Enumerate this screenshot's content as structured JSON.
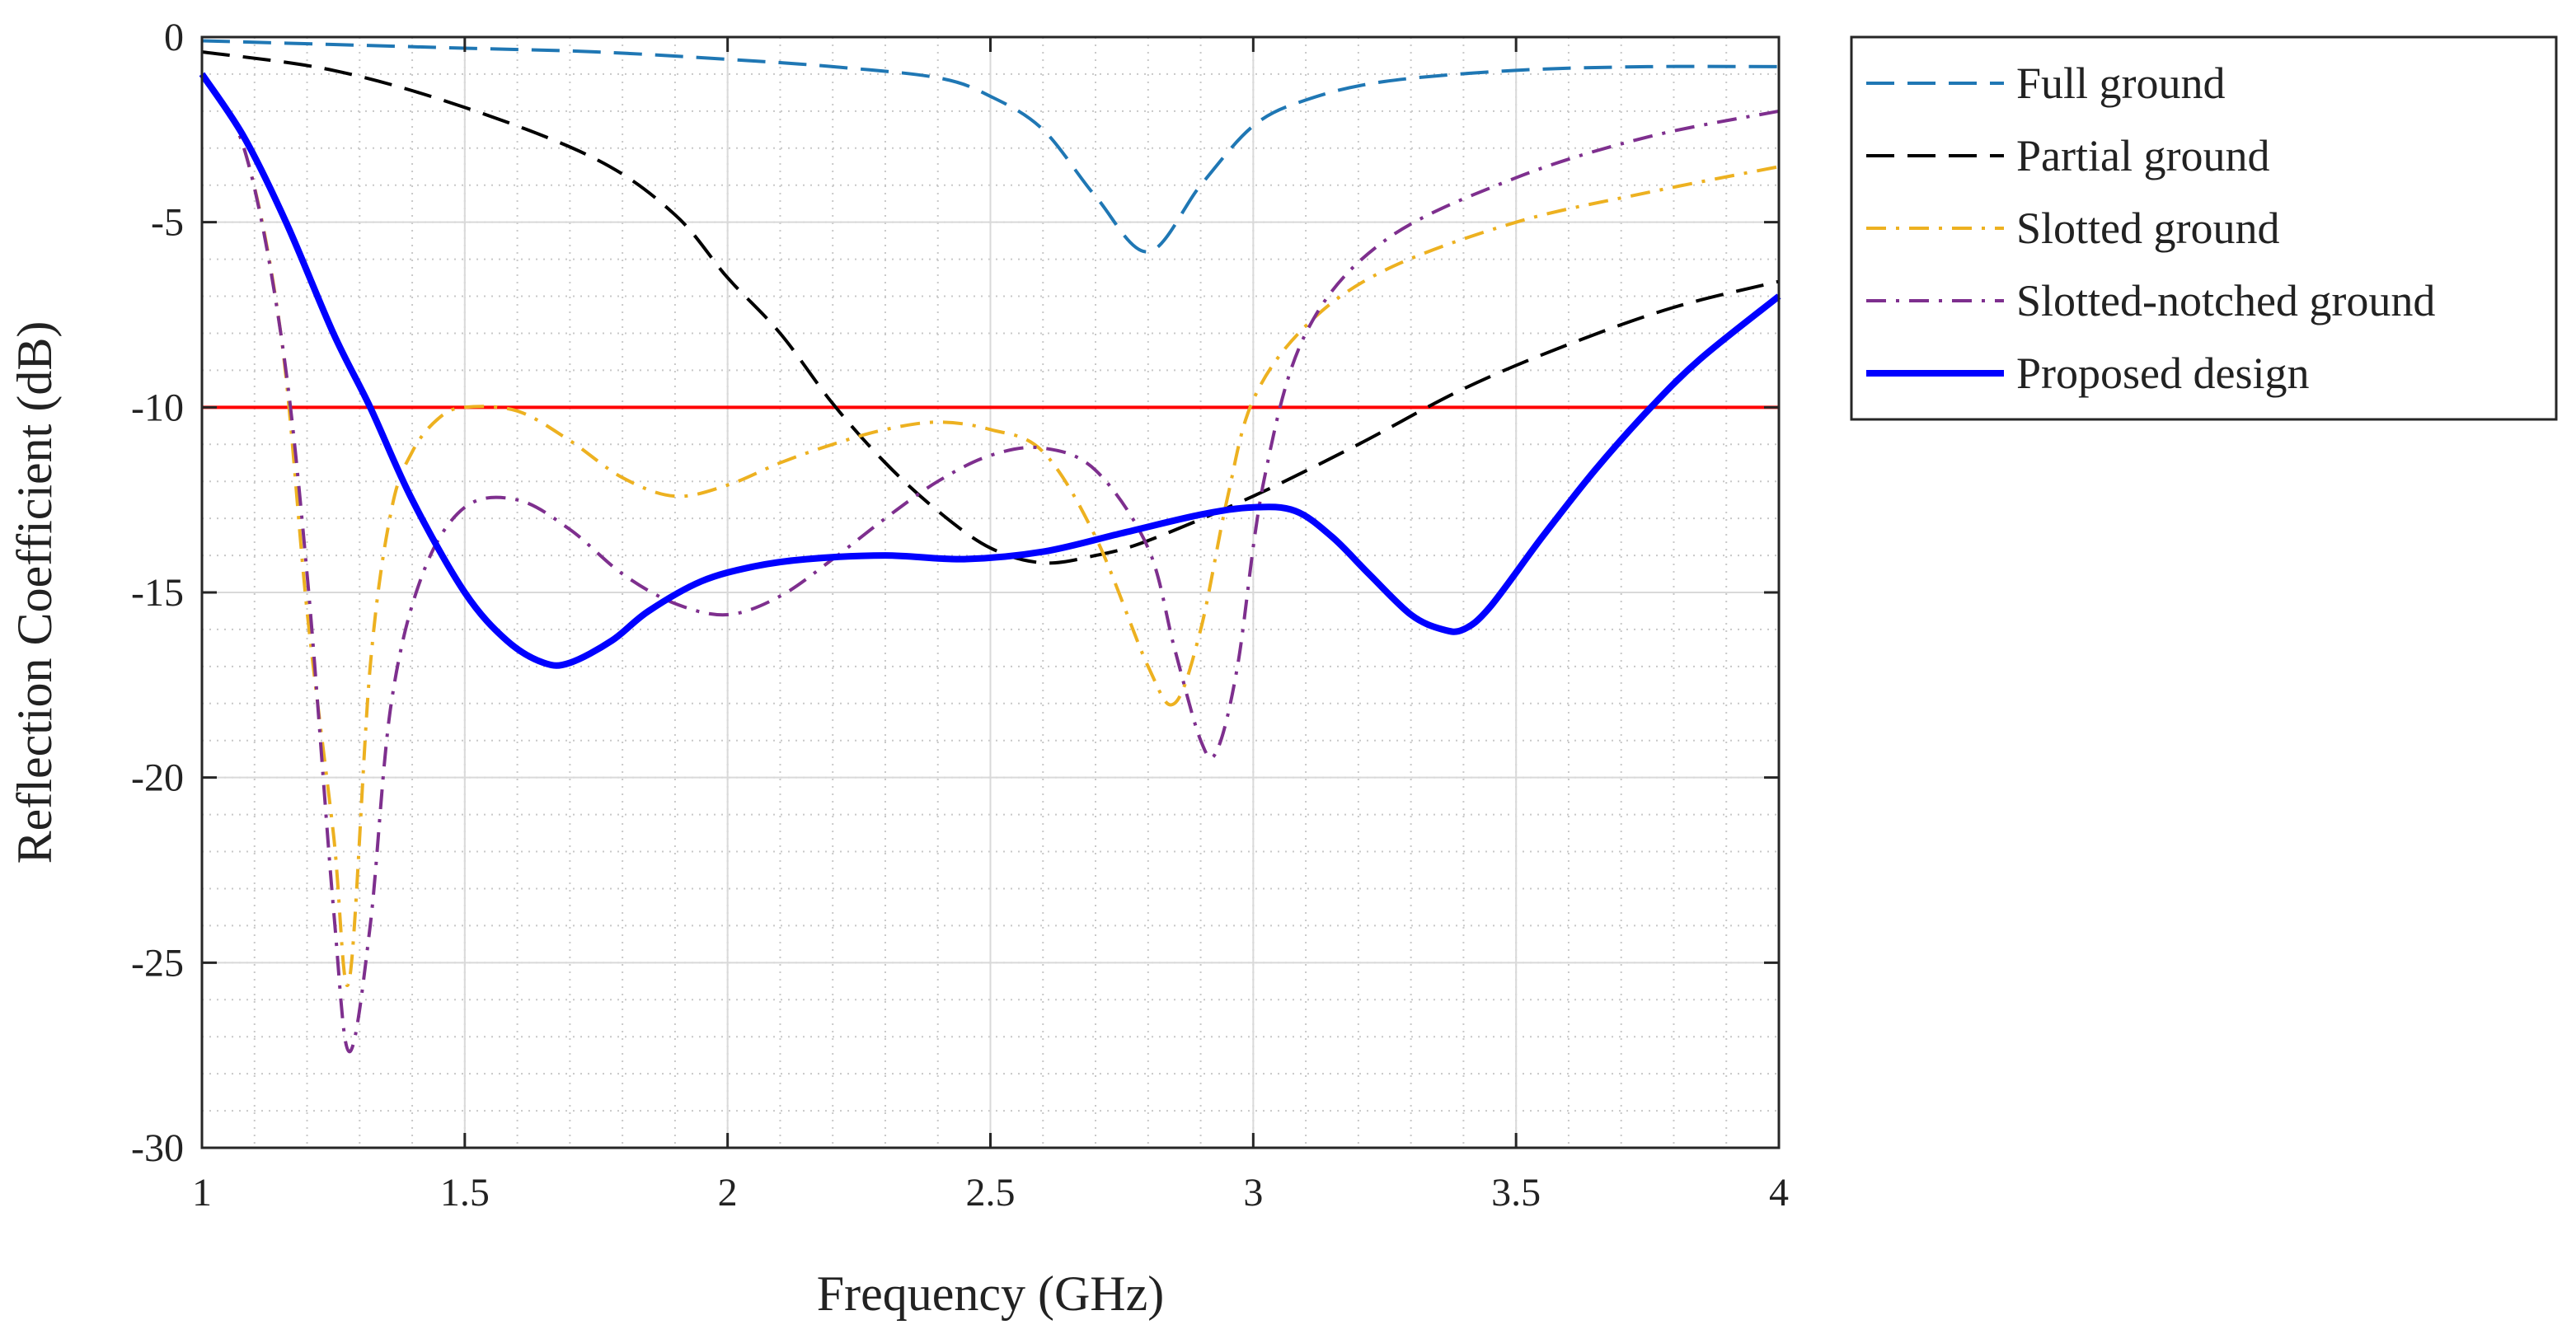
{
  "chart_data": {
    "type": "line",
    "title": "",
    "xlabel": "Frequency (GHz)",
    "ylabel": "Reflection Coefficient (dB)",
    "xlim": [
      1,
      4
    ],
    "ylim": [
      -30,
      0
    ],
    "xticks": [
      1,
      1.5,
      2,
      2.5,
      3,
      3.5,
      4
    ],
    "xtick_labels": [
      "1",
      "1.5",
      "2",
      "2.5",
      "3",
      "3.5",
      "4"
    ],
    "yticks": [
      0,
      -5,
      -10,
      -15,
      -20,
      -25,
      -30
    ],
    "ytick_labels": [
      "0",
      "-5",
      "-10",
      "-15",
      "-20",
      "-25",
      "-30"
    ],
    "grid": true,
    "minor_grid": true,
    "legend_position": "outside-top-right",
    "reference_line": {
      "y": -10,
      "color": "#ff0000"
    },
    "series": [
      {
        "name": "Full ground",
        "color": "#1f77b4",
        "style": "dashed",
        "x": [
          1,
          1.25,
          1.5,
          1.75,
          2,
          2.2,
          2.4,
          2.5,
          2.6,
          2.7,
          2.8,
          2.9,
          3,
          3.1,
          3.25,
          3.5,
          3.75,
          4
        ],
        "y": [
          -0.1,
          -0.2,
          -0.3,
          -0.4,
          -0.6,
          -0.8,
          -1.1,
          -1.6,
          -2.5,
          -4.3,
          -5.8,
          -4.0,
          -2.4,
          -1.7,
          -1.2,
          -0.9,
          -0.8,
          -0.8
        ]
      },
      {
        "name": "Partial ground",
        "color": "#000000",
        "style": "dashed",
        "x": [
          1,
          1.25,
          1.5,
          1.75,
          1.9,
          2,
          2.1,
          2.2,
          2.3,
          2.4,
          2.5,
          2.6,
          2.7,
          2.8,
          3,
          3.2,
          3.4,
          3.6,
          3.8,
          4
        ],
        "y": [
          -0.4,
          -0.9,
          -1.9,
          -3.3,
          -4.8,
          -6.5,
          -8.0,
          -9.9,
          -11.5,
          -12.8,
          -13.8,
          -14.2,
          -14.0,
          -13.6,
          -12.4,
          -11.0,
          -9.5,
          -8.3,
          -7.3,
          -6.6
        ]
      },
      {
        "name": "Slotted ground",
        "color": "#edb120",
        "style": "dashdot",
        "x": [
          1,
          1.08,
          1.15,
          1.2,
          1.25,
          1.28,
          1.32,
          1.36,
          1.4,
          1.45,
          1.5,
          1.6,
          1.7,
          1.8,
          1.9,
          2,
          2.1,
          2.2,
          2.3,
          2.4,
          2.5,
          2.6,
          2.7,
          2.8,
          2.85,
          2.9,
          2.95,
          3,
          3.1,
          3.25,
          3.5,
          3.75,
          4
        ],
        "y": [
          -1.0,
          -3.0,
          -8.0,
          -15.5,
          -21.5,
          -25.5,
          -17.0,
          -12.8,
          -11.2,
          -10.3,
          -10.0,
          -10.1,
          -10.9,
          -11.9,
          -12.4,
          -12.1,
          -11.5,
          -11.0,
          -10.6,
          -10.4,
          -10.6,
          -11.2,
          -13.5,
          -17.0,
          -18.0,
          -16.0,
          -12.5,
          -9.8,
          -7.8,
          -6.3,
          -5.0,
          -4.2,
          -3.5
        ]
      },
      {
        "name": "Slotted-notched ground",
        "color": "#7e2f8e",
        "style": "dashdot",
        "x": [
          1,
          1.08,
          1.15,
          1.2,
          1.25,
          1.28,
          1.32,
          1.36,
          1.42,
          1.5,
          1.6,
          1.7,
          1.8,
          1.9,
          2,
          2.1,
          2.2,
          2.3,
          2.4,
          2.5,
          2.6,
          2.7,
          2.8,
          2.85,
          2.9,
          2.93,
          2.97,
          3.02,
          3.1,
          3.25,
          3.5,
          3.75,
          4
        ],
        "y": [
          -1.0,
          -3.0,
          -8.0,
          -14.5,
          -23.5,
          -27.4,
          -24.0,
          -18.0,
          -14.5,
          -12.7,
          -12.5,
          -13.3,
          -14.5,
          -15.3,
          -15.6,
          -15.1,
          -14.1,
          -13.0,
          -12.0,
          -11.3,
          -11.1,
          -11.7,
          -13.8,
          -16.5,
          -19.0,
          -19.3,
          -17.0,
          -12.0,
          -8.0,
          -5.5,
          -3.8,
          -2.7,
          -2.0
        ]
      },
      {
        "name": "Proposed design",
        "color": "#0000ff",
        "style": "solid",
        "x": [
          1,
          1.08,
          1.16,
          1.25,
          1.32,
          1.4,
          1.5,
          1.58,
          1.65,
          1.7,
          1.78,
          1.85,
          1.95,
          2.05,
          2.15,
          2.3,
          2.45,
          2.6,
          2.75,
          2.9,
          3.0,
          3.08,
          3.15,
          3.22,
          3.3,
          3.36,
          3.4,
          3.45,
          3.55,
          3.65,
          3.75,
          3.85,
          4
        ],
        "y": [
          -1.0,
          -2.7,
          -5.0,
          -8.0,
          -10.0,
          -12.5,
          -15.0,
          -16.3,
          -16.9,
          -16.9,
          -16.3,
          -15.5,
          -14.7,
          -14.3,
          -14.1,
          -14.0,
          -14.1,
          -13.9,
          -13.4,
          -12.9,
          -12.7,
          -12.8,
          -13.5,
          -14.5,
          -15.6,
          -16.0,
          -16.0,
          -15.4,
          -13.5,
          -11.7,
          -10.1,
          -8.7,
          -7.0
        ]
      }
    ]
  }
}
